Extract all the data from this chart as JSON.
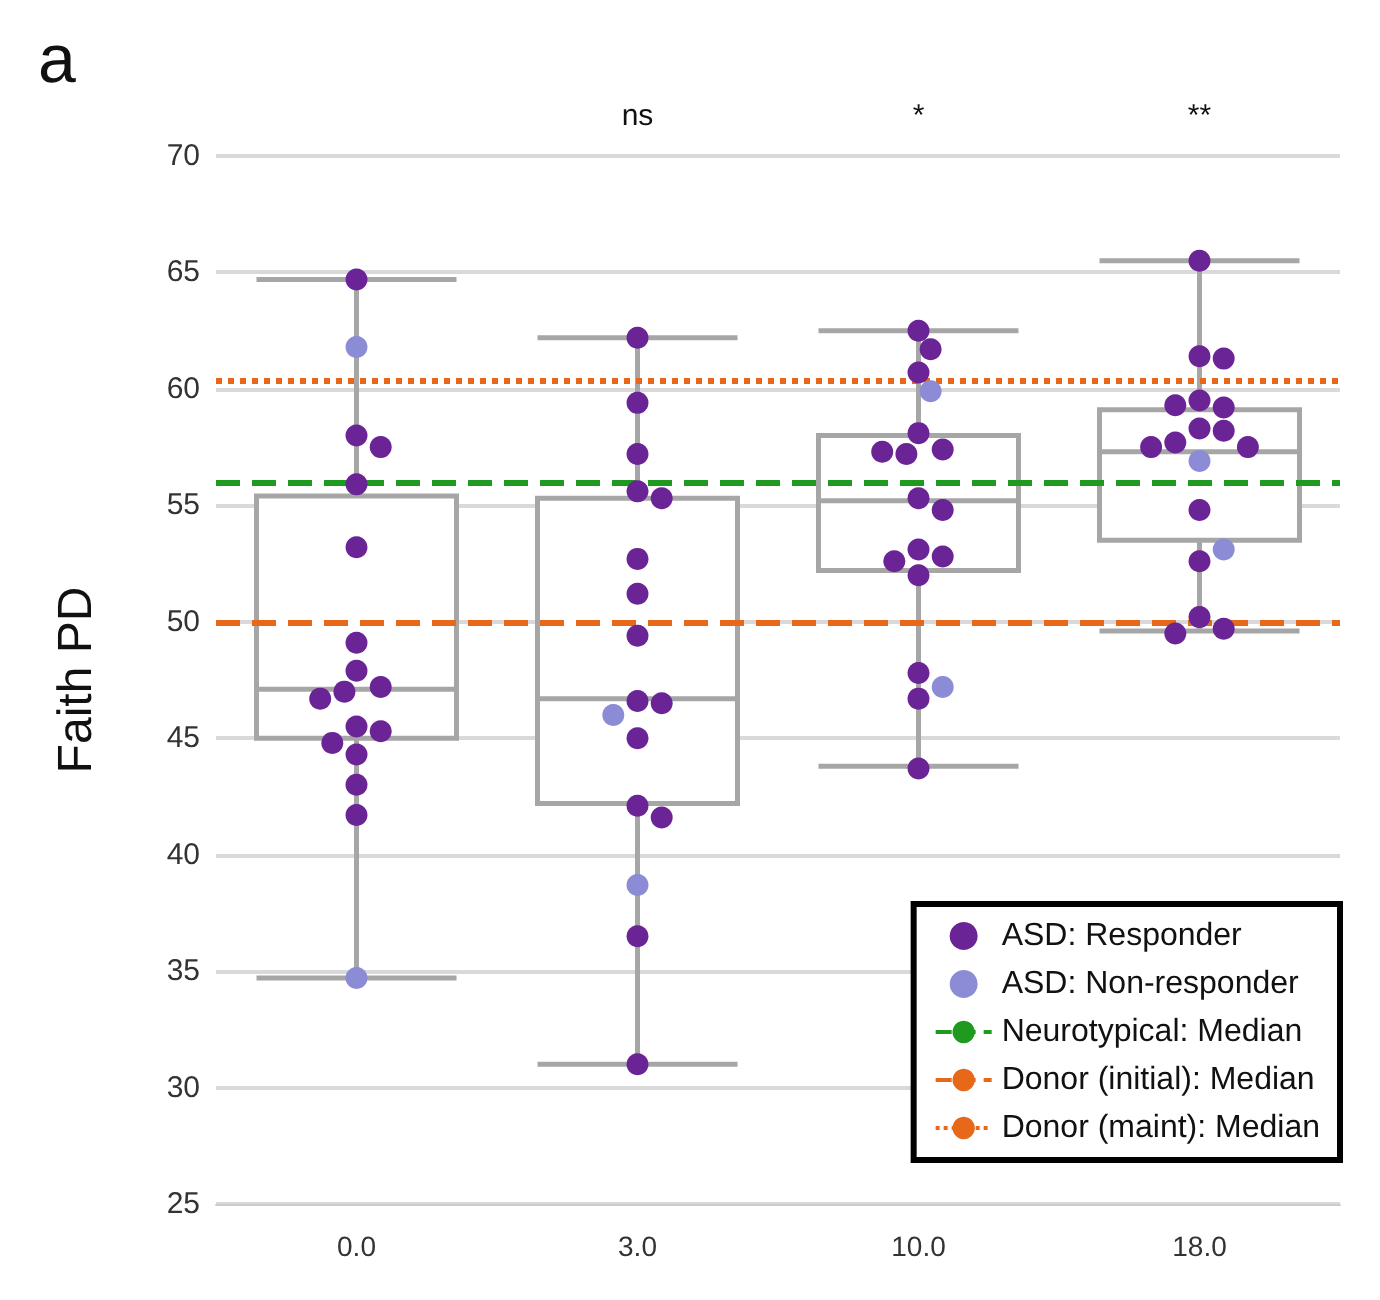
{
  "chart_data": {
    "type": "box",
    "title": "a",
    "ylabel": "Faith PD",
    "categories": [
      "0.0",
      "3.0",
      "10.0",
      "18.0"
    ],
    "boxes": [
      {
        "low": 34.7,
        "q1": 45.0,
        "median": 47.1,
        "q3": 55.4,
        "high": 64.7
      },
      {
        "low": 31.0,
        "q1": 42.2,
        "median": 46.7,
        "q3": 55.3,
        "high": 62.2
      },
      {
        "low": 43.8,
        "q1": 52.2,
        "median": 55.2,
        "q3": 58.0,
        "high": 62.5
      },
      {
        "low": 49.6,
        "q1": 53.5,
        "median": 57.3,
        "q3": 59.1,
        "high": 65.5
      }
    ],
    "series": [
      {
        "name": "ASD: Responder",
        "type": "scatter",
        "color": "#6a2496",
        "x": [
          "0.0",
          "0.0",
          "0.0",
          "0.0",
          "0.0",
          "0.0",
          "0.0",
          "0.0",
          "0.0",
          "0.0",
          "0.0",
          "0.0",
          "0.0",
          "0.0",
          "0.0",
          "0.0",
          "3.0",
          "3.0",
          "3.0",
          "3.0",
          "3.0",
          "3.0",
          "3.0",
          "3.0",
          "3.0",
          "3.0",
          "3.0",
          "3.0",
          "3.0",
          "3.0",
          "3.0",
          "10.0",
          "10.0",
          "10.0",
          "10.0",
          "10.0",
          "10.0",
          "10.0",
          "10.0",
          "10.0",
          "10.0",
          "10.0",
          "10.0",
          "10.0",
          "10.0",
          "10.0",
          "10.0",
          "18.0",
          "18.0",
          "18.0",
          "18.0",
          "18.0",
          "18.0",
          "18.0",
          "18.0",
          "18.0",
          "18.0",
          "18.0",
          "18.0",
          "18.0",
          "18.0",
          "18.0",
          "18.0"
        ],
        "values": [
          64.7,
          58.0,
          57.5,
          55.9,
          53.2,
          49.1,
          47.9,
          47.2,
          47.0,
          46.7,
          45.5,
          45.3,
          44.8,
          44.3,
          43.0,
          41.7,
          62.2,
          59.4,
          57.2,
          55.6,
          55.3,
          52.7,
          51.2,
          49.4,
          46.6,
          46.5,
          45.0,
          42.1,
          41.6,
          36.5,
          31.0,
          62.5,
          61.7,
          60.7,
          58.1,
          57.4,
          57.2,
          57.3,
          55.3,
          54.8,
          53.1,
          52.8,
          52.6,
          52.0,
          47.8,
          46.7,
          43.7,
          65.5,
          61.4,
          61.3,
          59.5,
          59.2,
          59.3,
          58.3,
          58.2,
          57.7,
          57.5,
          57.5,
          54.8,
          52.6,
          50.2,
          49.7,
          49.5
        ]
      },
      {
        "name": "ASD: Non-responder",
        "type": "scatter",
        "color": "#8b8bd6",
        "x": [
          "0.0",
          "0.0",
          "3.0",
          "3.0",
          "10.0",
          "10.0",
          "18.0",
          "18.0"
        ],
        "values": [
          61.8,
          34.7,
          46.0,
          38.7,
          59.9,
          47.2,
          56.9,
          53.1
        ]
      }
    ],
    "ref_lines": [
      {
        "axis": "y",
        "value": 56,
        "label": "Neurotypical: Median",
        "color": "#1f9a1f",
        "line_style": "dashed"
      },
      {
        "axis": "y",
        "value": 50,
        "label": "Donor (initial): Median",
        "color": "#e8681a",
        "line_style": "dashed"
      },
      {
        "axis": "y",
        "value": 60.4,
        "label": "Donor (maint): Median",
        "color": "#e8681a",
        "line_style": "dotted"
      }
    ],
    "annotations": [
      "ns",
      "*",
      "**"
    ],
    "ylim": [
      25,
      70
    ],
    "yticks": [
      25,
      30,
      35,
      40,
      45,
      50,
      55,
      60,
      65,
      70
    ],
    "grid": "y",
    "legend": "bottom right",
    "marker": "circle"
  }
}
